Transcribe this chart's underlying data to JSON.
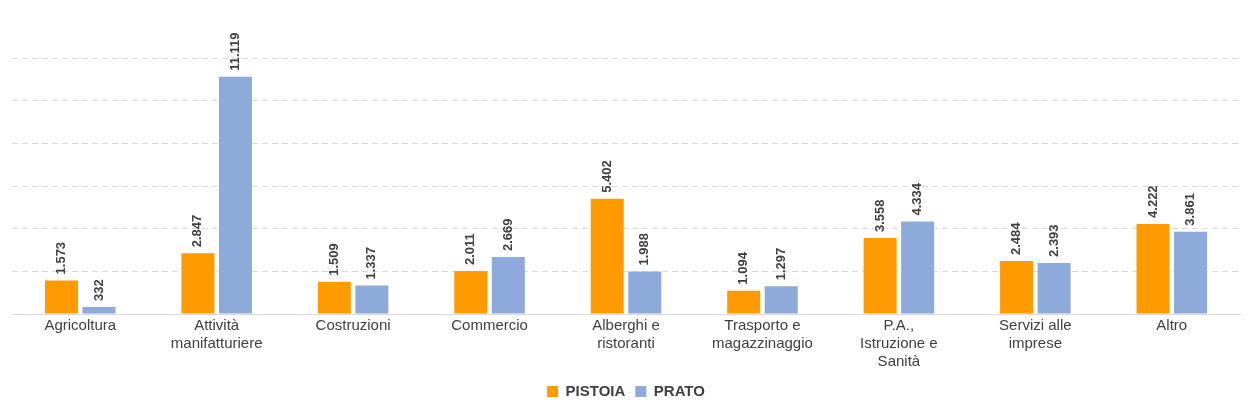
{
  "chart_data": {
    "type": "bar",
    "categories": [
      "Agricoltura",
      "Attività manifatturiere",
      "Costruzioni",
      "Commercio",
      "Alberghi e ristoranti",
      "Trasporto e magazzinaggio",
      "P.A., Istruzione e Sanità",
      "Servizi alle imprese",
      "Altro"
    ],
    "series": [
      {
        "name": "PISTOIA",
        "color": "#ff9a00",
        "values": [
          1573,
          2847,
          1509,
          2011,
          5402,
          1094,
          3558,
          2484,
          4222
        ],
        "value_labels": [
          "1.573",
          "2.847",
          "1.509",
          "2.011",
          "5.402",
          "1.094",
          "3.558",
          "2.484",
          "4.222"
        ]
      },
      {
        "name": "PRATO",
        "color": "#8eaadb",
        "values": [
          332,
          11119,
          1337,
          2669,
          1988,
          1297,
          4334,
          2393,
          3861
        ],
        "value_labels": [
          "332",
          "11.119",
          "1.337",
          "2.669",
          "1.988",
          "1.297",
          "4.334",
          "2.393",
          "3.861"
        ]
      }
    ],
    "tick_labels": "x",
    "grid": "y",
    "legend": "bottom"
  }
}
